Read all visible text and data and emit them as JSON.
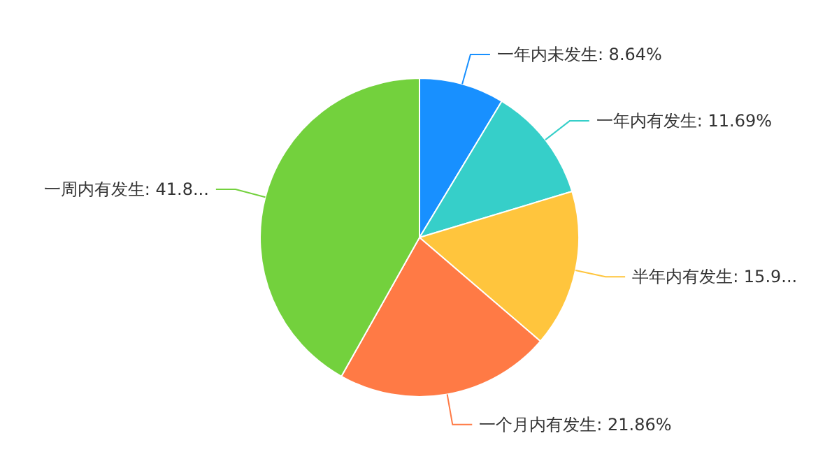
{
  "chart_data": {
    "type": "pie",
    "categories": [
      "一年内未发生",
      "一年内有发生",
      "半年内有发生",
      "一个月内有发生",
      "一周内有发生"
    ],
    "values": [
      8.64,
      11.69,
      15.96,
      21.86,
      41.85
    ],
    "value_labels": [
      "8.64%",
      "11.69%",
      "15.9...",
      "21.86%",
      "41.8..."
    ],
    "colors": [
      "#1890ff",
      "#36cfc9",
      "#ffc53d",
      "#ff7a45",
      "#73d13d"
    ],
    "legend": false
  }
}
